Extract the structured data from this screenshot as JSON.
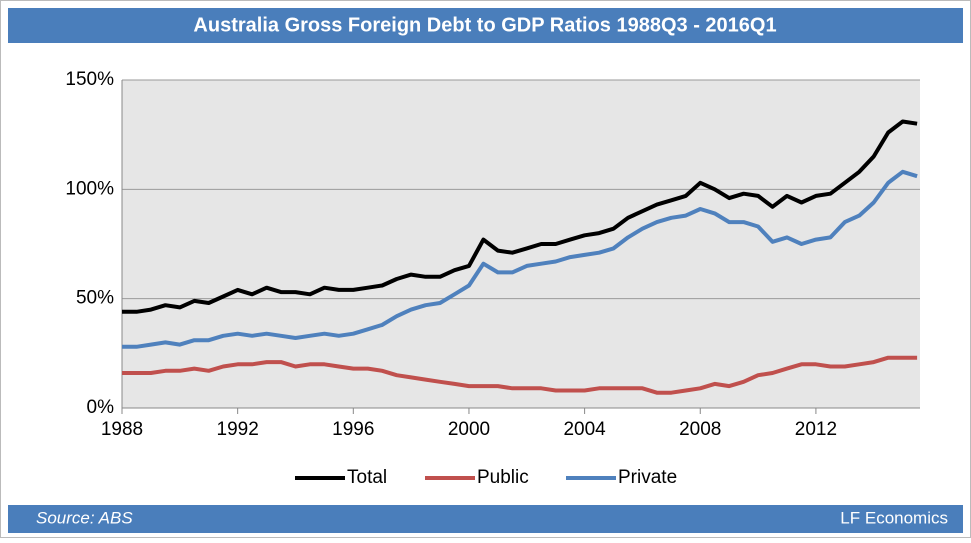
{
  "chart_data": {
    "type": "line",
    "title": "Australia Gross Foreign Debt to GDP Ratios 1988Q3 - 2016Q1",
    "x": [
      1988,
      1988.5,
      1989,
      1989.5,
      1990,
      1990.5,
      1991,
      1991.5,
      1992,
      1992.5,
      1993,
      1993.5,
      1994,
      1994.5,
      1995,
      1995.5,
      1996,
      1996.5,
      1997,
      1997.5,
      1998,
      1998.5,
      1999,
      1999.5,
      2000,
      2000.5,
      2001,
      2001.5,
      2002,
      2002.5,
      2003,
      2003.5,
      2004,
      2004.5,
      2005,
      2005.5,
      2006,
      2006.5,
      2007,
      2007.5,
      2008,
      2008.5,
      2009,
      2009.5,
      2010,
      2010.5,
      2011,
      2011.5,
      2012,
      2012.5,
      2013,
      2013.5,
      2014,
      2014.5,
      2015,
      2015.5
    ],
    "series": [
      {
        "name": "Total",
        "color": "#000000",
        "values": [
          44,
          44,
          45,
          47,
          46,
          49,
          48,
          51,
          54,
          52,
          55,
          53,
          53,
          52,
          55,
          54,
          54,
          55,
          56,
          59,
          61,
          60,
          60,
          63,
          65,
          77,
          72,
          71,
          73,
          75,
          75,
          77,
          79,
          80,
          82,
          87,
          90,
          93,
          95,
          97,
          103,
          100,
          96,
          98,
          97,
          92,
          97,
          94,
          97,
          98,
          103,
          108,
          115,
          126,
          131,
          130
        ]
      },
      {
        "name": "Public",
        "color": "#c0504d",
        "values": [
          16,
          16,
          16,
          17,
          17,
          18,
          17,
          19,
          20,
          20,
          21,
          21,
          19,
          20,
          20,
          19,
          18,
          18,
          17,
          15,
          14,
          13,
          12,
          11,
          10,
          10,
          10,
          9,
          9,
          9,
          8,
          8,
          8,
          9,
          9,
          9,
          9,
          7,
          7,
          8,
          9,
          11,
          10,
          12,
          15,
          16,
          18,
          20,
          20,
          19,
          19,
          20,
          21,
          23,
          23,
          23
        ]
      },
      {
        "name": "Private",
        "color": "#4f81bd",
        "values": [
          28,
          28,
          29,
          30,
          29,
          31,
          31,
          33,
          34,
          33,
          34,
          33,
          32,
          33,
          34,
          33,
          34,
          36,
          38,
          42,
          45,
          47,
          48,
          52,
          56,
          66,
          62,
          62,
          65,
          66,
          67,
          69,
          70,
          71,
          73,
          78,
          82,
          85,
          87,
          88,
          91,
          89,
          85,
          85,
          83,
          76,
          78,
          75,
          77,
          78,
          85,
          88,
          94,
          103,
          108,
          106
        ]
      }
    ],
    "xlim": [
      1988,
      2015.6
    ],
    "xticks": [
      1988,
      1992,
      1996,
      2000,
      2004,
      2008,
      2012
    ],
    "ylim": [
      0,
      150
    ],
    "yticks": [
      {
        "value": 0,
        "label": "0%"
      },
      {
        "value": 50,
        "label": "50%"
      },
      {
        "value": 100,
        "label": "100%"
      },
      {
        "value": 150,
        "label": "150%"
      }
    ],
    "grid": true,
    "legend": "bottom"
  },
  "footer": {
    "source": "Source: ABS",
    "brand": "LF Economics"
  }
}
